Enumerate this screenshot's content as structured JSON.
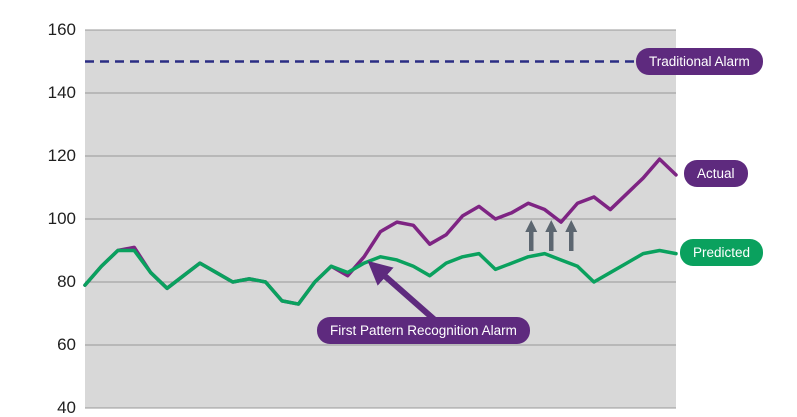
{
  "chart_data": {
    "type": "line",
    "title": "",
    "xlabel": "",
    "ylabel": "",
    "ylim": [
      40,
      160
    ],
    "y_ticks": [
      160,
      140,
      120,
      100,
      80,
      60,
      40
    ],
    "grid": true,
    "x": [
      0,
      1,
      2,
      3,
      4,
      5,
      6,
      7,
      8,
      9,
      10,
      11,
      12,
      13,
      14,
      15,
      16,
      17,
      18,
      19,
      20,
      21,
      22,
      23,
      24,
      25,
      26,
      27,
      28,
      29,
      30,
      31,
      32,
      33,
      34,
      35,
      36
    ],
    "series": [
      {
        "name": "Actual",
        "color": "#7e2483",
        "values": [
          79,
          85,
          90,
          91,
          83,
          78,
          82,
          86,
          83,
          80,
          81,
          80,
          74,
          73,
          80,
          85,
          82,
          88,
          96,
          99,
          98,
          92,
          95,
          101,
          104,
          100,
          102,
          105,
          103,
          99,
          105,
          107,
          103,
          108,
          113,
          119,
          114
        ]
      },
      {
        "name": "Predicted",
        "color": "#0aa15e",
        "values": [
          79,
          85,
          90,
          90,
          83,
          78,
          82,
          86,
          83,
          80,
          81,
          80,
          74,
          73,
          80,
          85,
          83,
          86,
          88,
          87,
          85,
          82,
          86,
          88,
          89,
          84,
          86,
          88,
          89,
          87,
          85,
          80,
          83,
          86,
          89,
          90,
          89
        ]
      }
    ],
    "threshold": {
      "label": "Traditional Alarm",
      "value": 150,
      "style": "dashed",
      "color": "#2b2d84"
    },
    "annotations": [
      {
        "type": "callout",
        "text": "First Pattern Recognition Alarm",
        "points_to": {
          "x_index": 17,
          "value": 88
        }
      },
      {
        "type": "up-arrows",
        "count": 3,
        "color": "#5c6670",
        "near_x_index": 27
      }
    ],
    "legend_position": "right"
  },
  "colors": {
    "purple_box": "#5e2a7e",
    "green_box": "#0aa15e",
    "purple_line": "#7e2483",
    "green_line": "#0aa15e",
    "threshold_line": "#2b2d84",
    "plot_bg": "#d8d8d8",
    "grid": "#999999",
    "up_arrows": "#5c6670",
    "tick_text": "#1f1f1f"
  }
}
